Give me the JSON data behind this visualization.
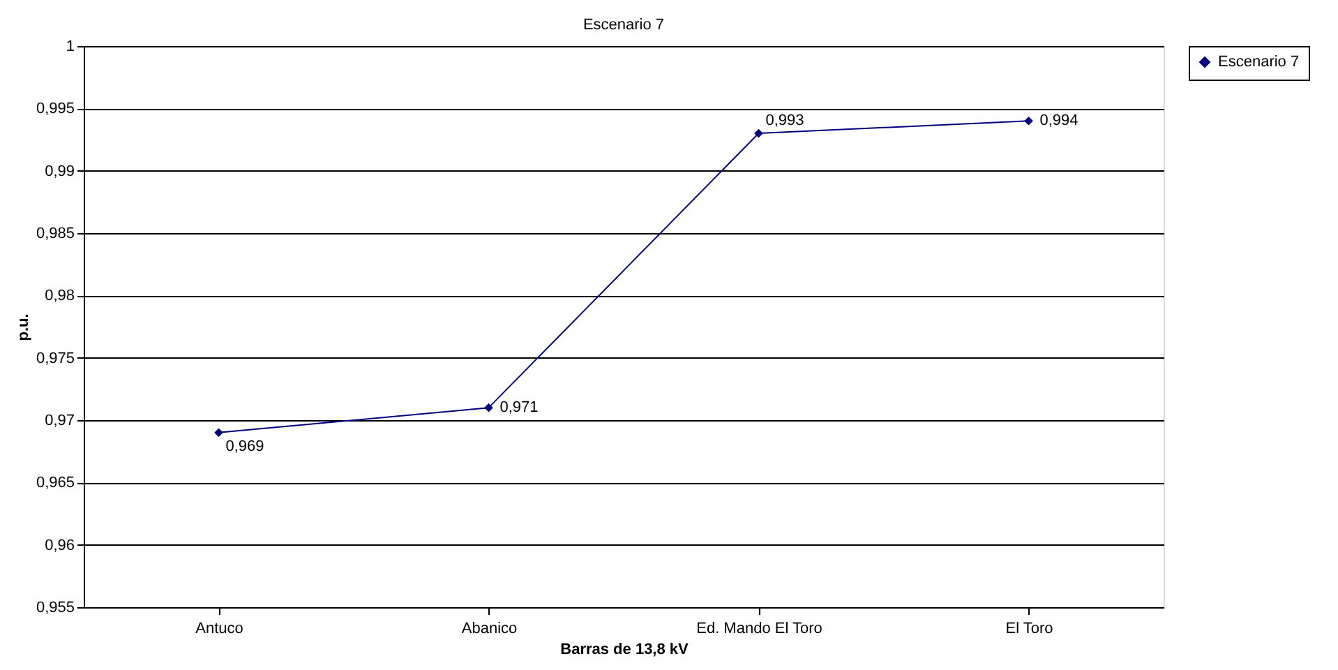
{
  "chart_data": {
    "type": "line",
    "title": "Escenario 7",
    "xlabel": "Barras de 13,8 kV",
    "ylabel": "p.u.",
    "categories": [
      "Antuco",
      "Abanico",
      "Ed. Mando El Toro",
      "El Toro"
    ],
    "series": [
      {
        "name": "Escenario 7",
        "color": "#000080",
        "values": [
          0.969,
          0.971,
          0.993,
          0.994
        ],
        "value_labels": [
          "0,969",
          "0,971",
          "0,993",
          "0,994"
        ]
      }
    ],
    "ylim": [
      0.955,
      1
    ],
    "yticks": [
      {
        "value": 0.955,
        "label": "0,955"
      },
      {
        "value": 0.96,
        "label": "0,96"
      },
      {
        "value": 0.965,
        "label": "0,965"
      },
      {
        "value": 0.97,
        "label": "0,97"
      },
      {
        "value": 0.975,
        "label": "0,975"
      },
      {
        "value": 0.98,
        "label": "0,98"
      },
      {
        "value": 0.985,
        "label": "0,985"
      },
      {
        "value": 0.99,
        "label": "0,99"
      },
      {
        "value": 0.995,
        "label": "0,995"
      },
      {
        "value": 1,
        "label": "1"
      }
    ],
    "grid": "y",
    "legend": "right",
    "marker": "diamond",
    "line_style": "solid"
  }
}
